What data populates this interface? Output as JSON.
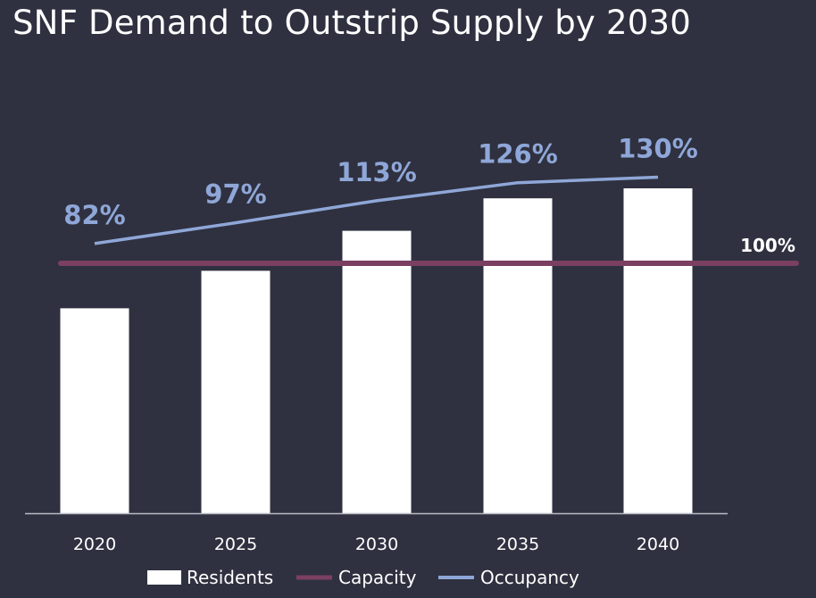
{
  "title": "SNF Demand to Outstrip Supply by 2030",
  "colors": {
    "background": "#2f3140",
    "residents": "#ffffff",
    "capacity": "#7b3f61",
    "occupancy": "#8fa7d8",
    "axis": "#b9bcc6"
  },
  "chart_data": {
    "type": "bar",
    "categories": [
      "2020",
      "2025",
      "2030",
      "2035",
      "2040"
    ],
    "series": [
      {
        "name": "Residents",
        "type": "bar",
        "values": [
          82,
          97,
          113,
          126,
          130
        ]
      },
      {
        "name": "Capacity",
        "type": "line",
        "values": [
          100,
          100,
          100,
          100,
          100
        ]
      },
      {
        "name": "Occupancy",
        "type": "line",
        "values": [
          82,
          97,
          113,
          126,
          130
        ]
      }
    ],
    "data_labels": {
      "Occupancy": [
        "82%",
        "97%",
        "113%",
        "126%",
        "130%"
      ],
      "Capacity": "100%"
    },
    "xlabel": "",
    "ylabel": "",
    "legend_position": "bottom",
    "grid": false
  }
}
